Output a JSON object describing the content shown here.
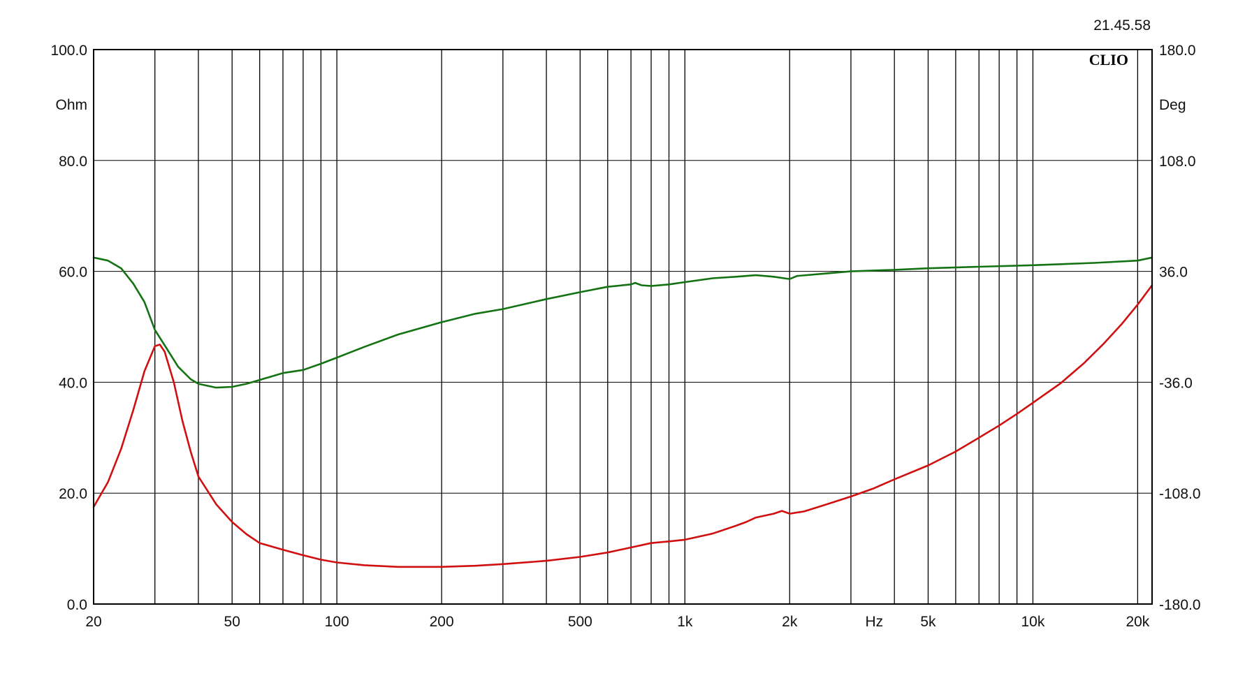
{
  "timestamp": "21.45.58",
  "brand": "CLIO",
  "chart_data": {
    "type": "line",
    "x_scale": "log",
    "xlim": [
      20,
      22000
    ],
    "x_ticks": [
      20,
      50,
      100,
      200,
      500,
      1000,
      2000,
      5000,
      10000,
      20000
    ],
    "x_tick_labels": [
      "20",
      "50",
      "100",
      "200",
      "500",
      "1k",
      "2k",
      "5k",
      "10k",
      "20k"
    ],
    "x_unit_label": "Hz",
    "x_unit_position": 3500,
    "left_axis": {
      "unit": "Ohm",
      "ylim": [
        0,
        100
      ],
      "ticks": [
        0,
        20,
        40,
        60,
        80,
        100
      ],
      "tick_labels": [
        "0.0",
        "20.0",
        "40.0",
        "60.0",
        "80.0",
        "100.0"
      ]
    },
    "right_axis": {
      "unit": "Deg",
      "ylim": [
        -180,
        180
      ],
      "ticks": [
        -180,
        -108,
        -36,
        36,
        108,
        180
      ],
      "tick_labels": [
        "-180.0",
        "-108.0",
        "-36.0",
        "36.0",
        "108.0",
        "180.0"
      ]
    },
    "grid": true,
    "series": [
      {
        "axis": "left",
        "color": "#d01010",
        "points": [
          [
            20,
            17.5
          ],
          [
            22,
            22
          ],
          [
            24,
            28
          ],
          [
            26,
            35
          ],
          [
            28,
            42
          ],
          [
            30,
            46.5
          ],
          [
            31,
            46.8
          ],
          [
            32,
            45.5
          ],
          [
            34,
            40
          ],
          [
            36,
            33
          ],
          [
            38,
            27.5
          ],
          [
            40,
            23
          ],
          [
            45,
            18
          ],
          [
            50,
            14.8
          ],
          [
            55,
            12.6
          ],
          [
            60,
            11
          ],
          [
            70,
            9.8
          ],
          [
            80,
            8.8
          ],
          [
            90,
            8
          ],
          [
            100,
            7.5
          ],
          [
            120,
            7
          ],
          [
            150,
            6.7
          ],
          [
            200,
            6.7
          ],
          [
            250,
            6.9
          ],
          [
            300,
            7.2
          ],
          [
            400,
            7.8
          ],
          [
            500,
            8.5
          ],
          [
            600,
            9.3
          ],
          [
            700,
            10.2
          ],
          [
            800,
            11
          ],
          [
            900,
            11.3
          ],
          [
            1000,
            11.6
          ],
          [
            1200,
            12.7
          ],
          [
            1400,
            14.1
          ],
          [
            1500,
            14.8
          ],
          [
            1600,
            15.6
          ],
          [
            1800,
            16.3
          ],
          [
            1900,
            16.8
          ],
          [
            2000,
            16.3
          ],
          [
            2200,
            16.7
          ],
          [
            2500,
            17.8
          ],
          [
            3000,
            19.4
          ],
          [
            3500,
            20.9
          ],
          [
            4000,
            22.5
          ],
          [
            5000,
            25
          ],
          [
            6000,
            27.5
          ],
          [
            7000,
            30
          ],
          [
            8000,
            32.2
          ],
          [
            9000,
            34.3
          ],
          [
            10000,
            36.3
          ],
          [
            12000,
            39.8
          ],
          [
            14000,
            43.4
          ],
          [
            16000,
            47
          ],
          [
            18000,
            50.5
          ],
          [
            20000,
            54
          ],
          [
            22000,
            57.5
          ]
        ]
      },
      {
        "axis": "right",
        "color": "#137313",
        "points": [
          [
            20,
            45
          ],
          [
            22,
            43
          ],
          [
            24,
            38
          ],
          [
            26,
            28
          ],
          [
            28,
            16
          ],
          [
            30,
            -2
          ],
          [
            32,
            -12
          ],
          [
            35,
            -26
          ],
          [
            38,
            -34
          ],
          [
            40,
            -37
          ],
          [
            45,
            -39.5
          ],
          [
            50,
            -39
          ],
          [
            55,
            -37
          ],
          [
            60,
            -34.5
          ],
          [
            70,
            -30
          ],
          [
            80,
            -28
          ],
          [
            90,
            -24
          ],
          [
            100,
            -20
          ],
          [
            120,
            -13
          ],
          [
            150,
            -5
          ],
          [
            200,
            3
          ],
          [
            250,
            8.5
          ],
          [
            300,
            11.5
          ],
          [
            400,
            18
          ],
          [
            500,
            22.5
          ],
          [
            600,
            26
          ],
          [
            700,
            27.5
          ],
          [
            720,
            28.5
          ],
          [
            750,
            27
          ],
          [
            800,
            26.5
          ],
          [
            900,
            27.5
          ],
          [
            1000,
            29
          ],
          [
            1200,
            31.5
          ],
          [
            1400,
            32.5
          ],
          [
            1600,
            33.5
          ],
          [
            1800,
            32.5
          ],
          [
            2000,
            31
          ],
          [
            2100,
            33
          ],
          [
            2500,
            34.5
          ],
          [
            3000,
            36
          ],
          [
            4000,
            37
          ],
          [
            5000,
            38
          ],
          [
            7000,
            39
          ],
          [
            10000,
            40
          ],
          [
            15000,
            41.5
          ],
          [
            20000,
            43
          ],
          [
            22000,
            45
          ]
        ]
      }
    ]
  }
}
